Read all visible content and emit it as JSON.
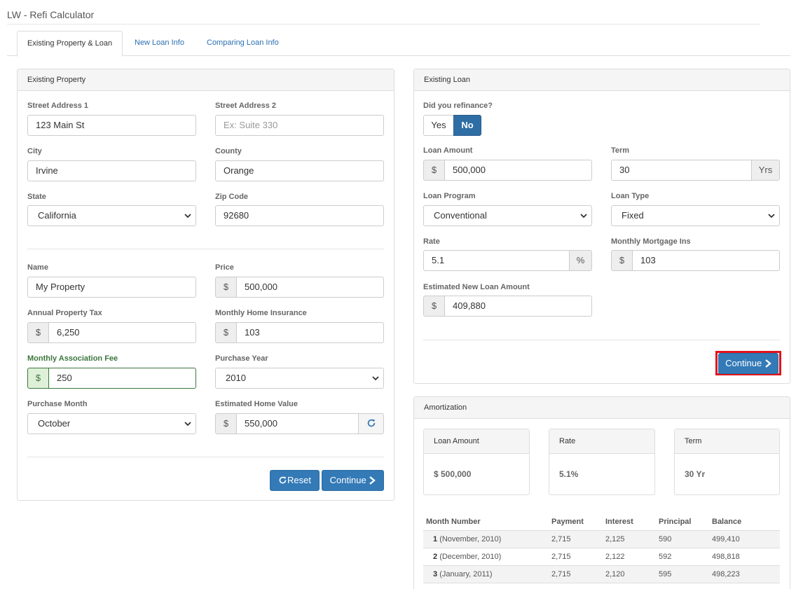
{
  "app": {
    "title": "LW - Refi Calculator"
  },
  "tabs": [
    {
      "label": "Existing Property & Loan",
      "active": true
    },
    {
      "label": "New Loan Info",
      "active": false
    },
    {
      "label": "Comparing Loan Info",
      "active": false
    }
  ],
  "existing_property": {
    "heading": "Existing Property",
    "street1": {
      "label": "Street Address 1",
      "value": "123 Main St"
    },
    "street2": {
      "label": "Street Address 2",
      "placeholder": "Ex: Suite 330"
    },
    "city": {
      "label": "City",
      "value": "Irvine"
    },
    "county": {
      "label": "County",
      "value": "Orange"
    },
    "state": {
      "label": "State",
      "value": "California"
    },
    "zip": {
      "label": "Zip Code",
      "value": "92680"
    },
    "name": {
      "label": "Name",
      "value": "My Property"
    },
    "price": {
      "label": "Price",
      "prefix": "$",
      "value": "500,000"
    },
    "property_tax": {
      "label": "Annual Property Tax",
      "prefix": "$",
      "value": "6,250"
    },
    "home_insurance": {
      "label": "Monthly Home Insurance",
      "prefix": "$",
      "value": "103"
    },
    "association_fee": {
      "label": "Monthly Association Fee",
      "prefix": "$",
      "value": "250"
    },
    "purchase_year": {
      "label": "Purchase Year",
      "value": "2010"
    },
    "purchase_month": {
      "label": "Purchase Month",
      "value": "October"
    },
    "home_value": {
      "label": "Estimated Home Value",
      "prefix": "$",
      "value": "550,000"
    },
    "reset_label": "Reset",
    "continue_label": "Continue"
  },
  "existing_loan": {
    "heading": "Existing Loan",
    "refinance": {
      "label": "Did you refinance?",
      "yes": "Yes",
      "no": "No",
      "selected": "No"
    },
    "loan_amount": {
      "label": "Loan Amount",
      "prefix": "$",
      "value": "500,000"
    },
    "term": {
      "label": "Term",
      "value": "30",
      "suffix": "Yrs"
    },
    "loan_program": {
      "label": "Loan Program",
      "value": "Conventional"
    },
    "loan_type": {
      "label": "Loan Type",
      "value": "Fixed"
    },
    "rate": {
      "label": "Rate",
      "value": "5.1",
      "suffix": "%"
    },
    "mortgage_ins": {
      "label": "Monthly Mortgage Ins",
      "prefix": "$",
      "value": "103"
    },
    "new_loan_amount": {
      "label": "Estimated New Loan Amount",
      "prefix": "$",
      "value": "409,880"
    },
    "continue_label": "Continue"
  },
  "amortization": {
    "heading": "Amortization",
    "cards": [
      {
        "title": "Loan Amount",
        "value": "$ 500,000"
      },
      {
        "title": "Rate",
        "value": "5.1%"
      },
      {
        "title": "Term",
        "value": "30 Yr"
      }
    ],
    "columns": [
      "Month Number",
      "Payment",
      "Interest",
      "Principal",
      "Balance"
    ],
    "rows": [
      {
        "num": "1",
        "date": "(November, 2010)",
        "payment": "2,715",
        "interest": "2,125",
        "principal": "590",
        "balance": "499,410"
      },
      {
        "num": "2",
        "date": "(December, 2010)",
        "payment": "2,715",
        "interest": "2,122",
        "principal": "592",
        "balance": "498,818"
      },
      {
        "num": "3",
        "date": "(January, 2011)",
        "payment": "2,715",
        "interest": "2,120",
        "principal": "595",
        "balance": "498,223"
      }
    ]
  },
  "colors": {
    "primary": "#337ab7",
    "highlight": "#e0141e",
    "success": "#3c763d"
  }
}
